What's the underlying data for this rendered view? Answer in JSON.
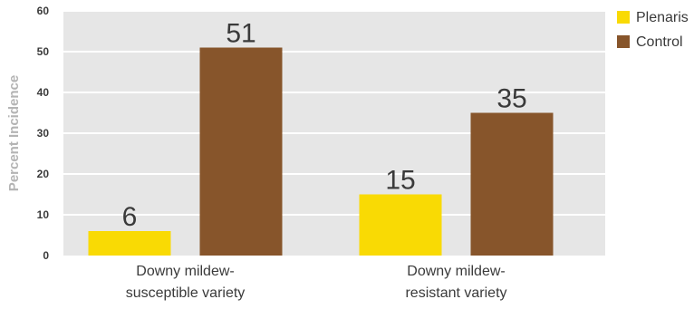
{
  "chart_data": {
    "type": "bar",
    "categories": [
      [
        "Downy mildew-",
        "susceptible variety"
      ],
      [
        "Downy mildew-",
        "resistant variety"
      ]
    ],
    "series": [
      {
        "name": "Plenaris",
        "color": "#f9da04",
        "values": [
          6,
          15
        ]
      },
      {
        "name": "Control",
        "color": "#87552b",
        "values": [
          51,
          35
        ]
      }
    ],
    "title": "",
    "xlabel": "",
    "ylabel": "Percent Incidence",
    "ylim": [
      0,
      60
    ],
    "yticks": [
      0,
      10,
      20,
      30,
      40,
      50,
      60
    ],
    "grid": true,
    "legend_position": "top-right",
    "background_color": "#e6e6e6",
    "grid_color": "#ffffff"
  }
}
